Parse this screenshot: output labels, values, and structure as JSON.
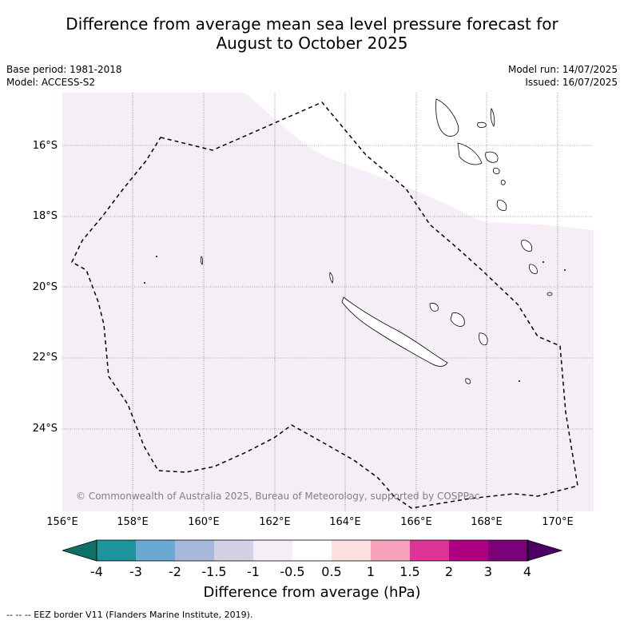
{
  "header": {
    "title_line1": "Difference from average mean sea level pressure forecast for",
    "title_line2": "August to October 2025",
    "base_period": "Base period: 1981-2018",
    "model": "Model: ACCESS-S2",
    "model_run": "Model run: 14/07/2025",
    "issued": "Issued: 16/07/2025"
  },
  "map": {
    "lat_labels": [
      "16°S",
      "18°S",
      "20°S",
      "22°S",
      "24°S"
    ],
    "lon_labels": [
      "156°E",
      "158°E",
      "160°E",
      "162°E",
      "164°E",
      "166°E",
      "168°E",
      "170°E"
    ],
    "copyright": "© Commonwealth of Australia 2025, Bureau of Meteorology, supported by COSPPac",
    "shading_color": "#f5eef6",
    "background_color": "#ffffff"
  },
  "colorbar": {
    "tick_labels": [
      "-4",
      "-3",
      "-2",
      "-1.5",
      "-1",
      "-0.5",
      "0.5",
      "1",
      "1.5",
      "2",
      "3",
      "4"
    ],
    "colors": [
      "#0e7066",
      "#1d939c",
      "#6aa9d2",
      "#a6b9db",
      "#d3d1e5",
      "#f5eef6",
      "#ffffff",
      "#ffdfe0",
      "#f7a1bb",
      "#dd3498",
      "#ad0182",
      "#7a0177",
      "#4d0064"
    ],
    "title": "Difference from average (hPa)"
  },
  "footer": {
    "legend_text": "--  --  -- EEZ border V11 (Flanders Marine Institute, 2019)."
  }
}
